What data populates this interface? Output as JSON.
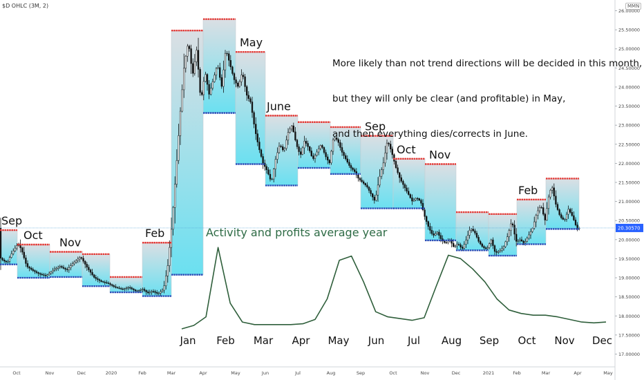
{
  "header": {
    "symbol": "$D OHLC (3M, 2)",
    "scale_badge": "MMN"
  },
  "annotations": {
    "note_lines": [
      "More likely than not trend directions will be decided in this month,",
      "but they will only be clear (and profitable) in May,",
      "and then everything dies/corrects in June."
    ],
    "activity_label": "Activity and profits average year"
  },
  "colors": {
    "candle": "#111111",
    "upper_band": "#e53935",
    "lower_band": "#2a4db8",
    "box_fill_top": "#d9dde2",
    "box_fill_bottom": "#63dff0",
    "price_line": "#4ea0d6",
    "price_badge": "#2962ff",
    "activity_curve": "#2e5e3a"
  },
  "chart_data": {
    "type": "candlestick",
    "y_axis": {
      "ticks": [
        "26.00000",
        "25.50000",
        "25.00000",
        "24.50000",
        "24.00000",
        "23.50000",
        "23.00000",
        "22.50000",
        "22.00000",
        "21.50000",
        "21.00000",
        "20.50000",
        "20.00000",
        "19.50000",
        "19.00000",
        "18.50000",
        "18.00000",
        "17.50000",
        "17.00000"
      ],
      "min": 16.9,
      "max": 26.1,
      "current_price": "20.30570",
      "price_line_level": 20.3057
    },
    "x_axis_ticks": [
      "Oct",
      "Nov",
      "Dec",
      "2020",
      "Feb",
      "Mar",
      "Apr",
      "May",
      "Jun",
      "Jul",
      "Aug",
      "Sep",
      "Oct",
      "Nov",
      "Dec",
      "2021",
      "Feb",
      "Mar",
      "Apr",
      "May"
    ],
    "month_boxes": [
      {
        "label": "Sep",
        "high": 20.25,
        "low": 19.35
      },
      {
        "label": "Oct",
        "high": 19.87,
        "low": 19.0
      },
      {
        "label": "Nov",
        "high": 19.68,
        "low": 19.02
      },
      {
        "label": "",
        "high": 19.62,
        "low": 18.78
      },
      {
        "label": "",
        "high": 19.02,
        "low": 18.62
      },
      {
        "label": "Feb",
        "high": 19.92,
        "low": 18.52
      },
      {
        "label": "",
        "high": 25.48,
        "low": 19.08
      },
      {
        "label": "",
        "high": 25.78,
        "low": 23.32
      },
      {
        "label": "May",
        "high": 24.92,
        "low": 21.98
      },
      {
        "label": "June",
        "high": 23.25,
        "low": 21.42
      },
      {
        "label": "",
        "high": 23.08,
        "low": 21.88
      },
      {
        "label": "",
        "high": 22.95,
        "low": 21.72
      },
      {
        "label": "Sep",
        "high": 22.72,
        "low": 20.82
      },
      {
        "label": "Oct",
        "high": 22.12,
        "low": 20.82
      },
      {
        "label": "Nov",
        "high": 21.98,
        "low": 19.98
      },
      {
        "label": "",
        "high": 20.72,
        "low": 19.72
      },
      {
        "label": "",
        "high": 20.67,
        "low": 19.58
      },
      {
        "label": "Feb",
        "high": 21.05,
        "low": 19.88
      },
      {
        "label": "",
        "high": 21.6,
        "low": 20.28
      }
    ],
    "price_path": [
      [
        0,
        19.55
      ],
      [
        6,
        19.45
      ],
      [
        12,
        19.4
      ],
      [
        17,
        19.6
      ],
      [
        22,
        19.75
      ],
      [
        28,
        19.9
      ],
      [
        33,
        19.7
      ],
      [
        40,
        19.3
      ],
      [
        48,
        19.2
      ],
      [
        58,
        19.1
      ],
      [
        68,
        19.05
      ],
      [
        78,
        19.2
      ],
      [
        88,
        19.3
      ],
      [
        98,
        19.2
      ],
      [
        108,
        19.4
      ],
      [
        118,
        19.55
      ],
      [
        128,
        19.25
      ],
      [
        138,
        19.0
      ],
      [
        148,
        18.9
      ],
      [
        158,
        18.85
      ],
      [
        168,
        18.75
      ],
      [
        178,
        18.7
      ],
      [
        188,
        18.75
      ],
      [
        198,
        18.65
      ],
      [
        208,
        18.7
      ],
      [
        215,
        18.6
      ],
      [
        222,
        18.65
      ],
      [
        230,
        18.58
      ],
      [
        238,
        18.7
      ],
      [
        244,
        19.3
      ],
      [
        250,
        20.4
      ],
      [
        256,
        21.8
      ],
      [
        262,
        23.3
      ],
      [
        268,
        24.6
      ],
      [
        274,
        25.2
      ],
      [
        280,
        24.3
      ],
      [
        286,
        25.0
      ],
      [
        292,
        23.6
      ],
      [
        298,
        24.4
      ],
      [
        304,
        23.8
      ],
      [
        310,
        24.2
      ],
      [
        316,
        24.6
      ],
      [
        322,
        24.0
      ],
      [
        328,
        25.0
      ],
      [
        334,
        24.6
      ],
      [
        340,
        24.2
      ],
      [
        346,
        24.0
      ],
      [
        352,
        24.4
      ],
      [
        358,
        23.8
      ],
      [
        364,
        23.6
      ],
      [
        370,
        22.9
      ],
      [
        376,
        22.4
      ],
      [
        382,
        22.0
      ],
      [
        388,
        21.8
      ],
      [
        394,
        21.5
      ],
      [
        400,
        22.1
      ],
      [
        406,
        22.5
      ],
      [
        412,
        22.3
      ],
      [
        418,
        22.8
      ],
      [
        424,
        23.0
      ],
      [
        430,
        22.5
      ],
      [
        436,
        22.2
      ],
      [
        442,
        22.6
      ],
      [
        448,
        22.4
      ],
      [
        454,
        22.1
      ],
      [
        460,
        22.3
      ],
      [
        466,
        22.5
      ],
      [
        472,
        22.2
      ],
      [
        478,
        22.0
      ],
      [
        484,
        22.7
      ],
      [
        490,
        22.6
      ],
      [
        496,
        22.3
      ],
      [
        502,
        22.1
      ],
      [
        508,
        21.9
      ],
      [
        514,
        21.8
      ],
      [
        520,
        21.6
      ],
      [
        526,
        21.5
      ],
      [
        532,
        21.4
      ],
      [
        538,
        21.2
      ],
      [
        544,
        21.0
      ],
      [
        550,
        21.6
      ],
      [
        556,
        22.0
      ],
      [
        562,
        22.6
      ],
      [
        568,
        22.3
      ],
      [
        574,
        21.9
      ],
      [
        580,
        21.6
      ],
      [
        586,
        21.4
      ],
      [
        592,
        21.2
      ],
      [
        598,
        21.0
      ],
      [
        604,
        21.1
      ],
      [
        610,
        21.0
      ],
      [
        616,
        20.6
      ],
      [
        622,
        20.3
      ],
      [
        628,
        20.1
      ],
      [
        634,
        20.2
      ],
      [
        640,
        20.0
      ],
      [
        646,
        19.9
      ],
      [
        652,
        20.0
      ],
      [
        658,
        19.8
      ],
      [
        664,
        19.9
      ],
      [
        670,
        19.75
      ],
      [
        676,
        20.0
      ],
      [
        682,
        20.3
      ],
      [
        688,
        20.2
      ],
      [
        694,
        19.95
      ],
      [
        700,
        19.8
      ],
      [
        706,
        19.75
      ],
      [
        712,
        20.0
      ],
      [
        718,
        19.65
      ],
      [
        724,
        19.7
      ],
      [
        730,
        19.8
      ],
      [
        736,
        20.1
      ],
      [
        742,
        20.5
      ],
      [
        748,
        19.95
      ],
      [
        754,
        20.0
      ],
      [
        760,
        19.9
      ],
      [
        766,
        20.1
      ],
      [
        772,
        20.3
      ],
      [
        778,
        20.7
      ],
      [
        784,
        20.9
      ],
      [
        790,
        20.5
      ],
      [
        796,
        21.2
      ],
      [
        800,
        21.4
      ],
      [
        806,
        20.9
      ],
      [
        812,
        20.6
      ],
      [
        818,
        20.5
      ],
      [
        824,
        20.8
      ],
      [
        830,
        20.6
      ],
      [
        836,
        20.3
      ],
      [
        840,
        20.3
      ]
    ],
    "activity_curve": {
      "x_labels": [
        "Jan",
        "Feb",
        "Mar",
        "Apr",
        "May",
        "Jun",
        "Jul",
        "Aug",
        "Sep",
        "Oct",
        "Nov",
        "Dec"
      ],
      "values": [
        0.0,
        0.04,
        0.14,
        0.95,
        0.3,
        0.08,
        0.05,
        0.05,
        0.05,
        0.05,
        0.06,
        0.11,
        0.35,
        0.8,
        0.85,
        0.55,
        0.2,
        0.14,
        0.12,
        0.1,
        0.13,
        0.5,
        0.86,
        0.82,
        0.7,
        0.55,
        0.35,
        0.22,
        0.18,
        0.16,
        0.16,
        0.14,
        0.11,
        0.08,
        0.07,
        0.08
      ]
    }
  }
}
